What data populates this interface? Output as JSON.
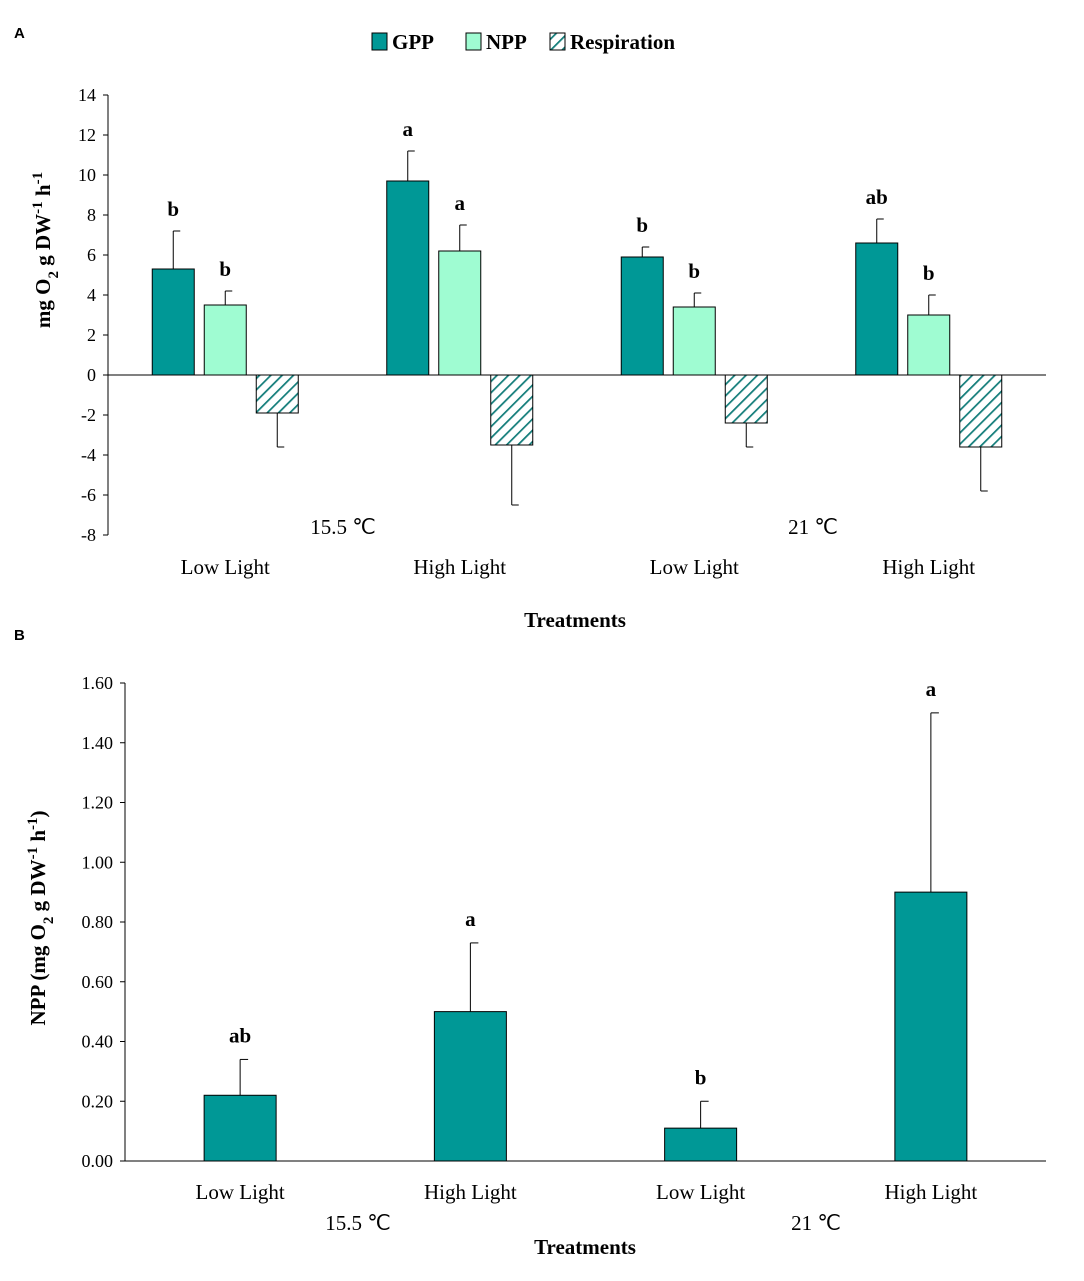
{
  "colors": {
    "gpp": "#009896",
    "npp": "#9FFCD2",
    "resp_hatch": "#137D7A",
    "axis": "#000000"
  },
  "chart_data": [
    {
      "panel": "A",
      "type": "bar",
      "legend": [
        "GPP",
        "NPP",
        "Respiration"
      ],
      "categories": [
        "Low Light",
        "High Light",
        "Low Light",
        "High Light"
      ],
      "groups": [
        "15.5  ℃",
        "21  ℃"
      ],
      "ylabel": "mg O2 g DW-1 h-1",
      "xlabel": "Treatments",
      "ylim": [
        -8,
        14
      ],
      "yticks": [
        "14",
        "12",
        "10",
        "8",
        "6",
        "4",
        "2",
        "0",
        "-2",
        "-4",
        "-6",
        "-8"
      ],
      "series": [
        {
          "name": "GPP",
          "values": [
            5.3,
            9.7,
            5.9,
            6.6
          ],
          "errors": [
            1.9,
            1.5,
            0.5,
            1.2
          ],
          "labels": [
            "b",
            "a",
            "b",
            "ab"
          ]
        },
        {
          "name": "NPP",
          "values": [
            3.5,
            6.2,
            3.4,
            3.0
          ],
          "errors": [
            0.7,
            1.3,
            0.7,
            1.0
          ],
          "labels": [
            "b",
            "a",
            "b",
            "b"
          ]
        },
        {
          "name": "Respiration",
          "values": [
            -1.9,
            -3.5,
            -2.4,
            -3.6
          ],
          "errors": [
            1.7,
            3.0,
            1.2,
            2.2
          ],
          "labels": [
            "",
            "",
            "",
            ""
          ]
        }
      ]
    },
    {
      "panel": "B",
      "type": "bar",
      "categories": [
        "Low Light",
        "High Light",
        "Low Light",
        "High Light"
      ],
      "groups": [
        "15.5  ℃",
        "21  ℃"
      ],
      "ylabel": "NPP (mg O2 g DW-1 h-1)",
      "xlabel": "Treatments",
      "ylim": [
        0,
        1.6
      ],
      "yticks": [
        "1.60",
        "1.40",
        "1.20",
        "1.00",
        "0.80",
        "0.60",
        "0.40",
        "0.20",
        "0.00"
      ],
      "series": [
        {
          "name": "NPP",
          "values": [
            0.22,
            0.5,
            0.11,
            0.9
          ],
          "errors": [
            0.12,
            0.23,
            0.09,
            0.6
          ],
          "labels": [
            "ab",
            "a",
            "b",
            "a"
          ]
        }
      ]
    }
  ]
}
